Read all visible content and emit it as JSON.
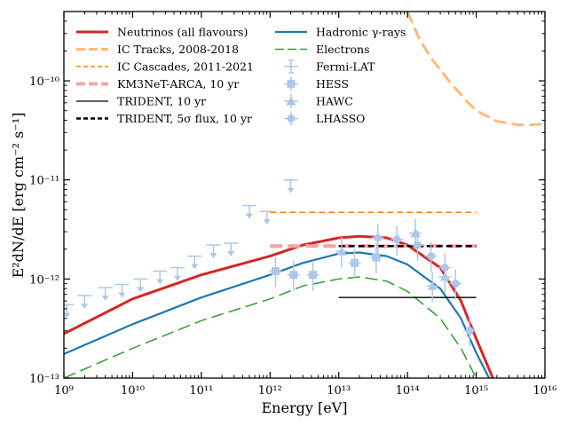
{
  "chart_data": {
    "type": "line",
    "xlabel": "Energy [eV]",
    "ylabel": "E²dN/dE [erg cm⁻² s⁻¹]",
    "xscale": "log",
    "yscale": "log",
    "xlim": [
      1000000000.0,
      1e+16
    ],
    "ylim": [
      1e-13,
      5e-10
    ],
    "x_major_ticks": [
      1000000000.0,
      10000000000.0,
      100000000000.0,
      1000000000000.0,
      10000000000000.0,
      100000000000000.0,
      1000000000000000.0,
      1e+16
    ],
    "x_tick_labels": [
      "10⁹",
      "10¹⁰",
      "10¹¹",
      "10¹²",
      "10¹³",
      "10¹⁴",
      "10¹⁵",
      "10¹⁶"
    ],
    "y_major_ticks": [
      1e-13,
      1e-12,
      1e-11,
      1e-10
    ],
    "y_tick_labels": [
      "10⁻¹³",
      "10⁻¹²",
      "10⁻¹¹",
      "10⁻¹⁰"
    ],
    "legend_location": "top-left",
    "series": [
      {
        "name": "Neutrinos (all flavours)",
        "color": "#d62728",
        "style": "solid",
        "width": 3,
        "x": [
          1000000000.0,
          10000000000.0,
          100000000000.0,
          1000000000000.0,
          3000000000000.0,
          10000000000000.0,
          20000000000000.0,
          50000000000000.0,
          100000000000000.0,
          300000000000000.0,
          600000000000000.0,
          1000000000000000.0,
          2000000000000000.0
        ],
        "y": [
          2.8e-13,
          6.3e-13,
          1.1e-12,
          1.7e-12,
          2.2e-12,
          2.6e-12,
          2.7e-12,
          2.6e-12,
          2.2e-12,
          1.3e-12,
          6e-13,
          2.5e-13,
          8e-14
        ]
      },
      {
        "name": "Hadronic γ-rays",
        "color": "#1f77b4",
        "style": "solid",
        "width": 2.2,
        "x": [
          1000000000.0,
          10000000000.0,
          100000000000.0,
          1000000000000.0,
          3000000000000.0,
          10000000000000.0,
          20000000000000.0,
          50000000000000.0,
          100000000000000.0,
          300000000000000.0,
          600000000000000.0,
          1000000000000000.0,
          2000000000000000.0
        ],
        "y": [
          1.75e-13,
          3.5e-13,
          6.5e-13,
          1.1e-12,
          1.45e-12,
          1.8e-12,
          1.85e-12,
          1.7e-12,
          1.4e-12,
          8e-13,
          4e-13,
          1.8e-13,
          7e-14
        ]
      },
      {
        "name": "Electrons",
        "color": "#2ca02c",
        "style": "longdash",
        "width": 1.5,
        "x": [
          1000000000.0,
          10000000000.0,
          100000000000.0,
          1000000000000.0,
          3000000000000.0,
          10000000000000.0,
          20000000000000.0,
          50000000000000.0,
          100000000000000.0,
          300000000000000.0,
          600000000000000.0,
          1000000000000000.0
        ],
        "y": [
          1e-13,
          2e-13,
          3.8e-13,
          6.3e-13,
          8.5e-13,
          1e-12,
          1.05e-12,
          9.5e-13,
          7.5e-13,
          4e-13,
          2e-13,
          1e-13
        ]
      },
      {
        "name": "IC Tracks, 2008-2018",
        "color": "#ffbb78",
        "style": "longdash",
        "width": 3,
        "x": [
          100000000000000.0,
          150000000000000.0,
          220000000000000.0,
          400000000000000.0,
          700000000000000.0,
          1000000000000000.0,
          2000000000000000.0,
          4000000000000000.0,
          6000000000000000.0,
          1e+16
        ],
        "y": [
          5e-10,
          2.6e-10,
          1.7e-10,
          1e-10,
          6.4e-11,
          5e-11,
          3.9e-11,
          3.6e-11,
          3.6e-11,
          3.65e-11
        ]
      },
      {
        "name": "IC Cascades, 2011-2021",
        "color": "#ff7f0e",
        "style": "dashed",
        "width": 1.5,
        "x": [
          1000000000000.0,
          1000000000000000.0
        ],
        "y": [
          4.7e-12,
          4.7e-12
        ]
      },
      {
        "name": "KM3NeT-ARCA, 10 yr",
        "color": "#f4a4a4",
        "style": "longdash",
        "width": 4,
        "x": [
          1000000000000.0,
          1000000000000000.0
        ],
        "y": [
          2.15e-12,
          2.15e-12
        ]
      },
      {
        "name": "TRIDENT, 10 yr",
        "color": "#000000",
        "style": "solid",
        "width": 1.3,
        "x": [
          10000000000000.0,
          1000000000000000.0
        ],
        "y": [
          6.5e-13,
          6.5e-13
        ]
      },
      {
        "name": "TRIDENT, 5σ flux, 10 yr",
        "color": "#000000",
        "style": "dashed",
        "width": 2.5,
        "x": [
          10000000000000.0,
          1000000000000000.0
        ],
        "y": [
          2.15e-12,
          2.15e-12
        ]
      }
    ],
    "data_points": [
      {
        "name": "Fermi-LAT",
        "marker": "upper-limit",
        "color": "#aec7e8",
        "x": [
          1100000000.0,
          2000000000.0,
          4000000000.0,
          7000000000.0,
          13000000000.0,
          25000000000.0,
          45000000000.0,
          80000000000.0,
          150000000000.0,
          270000000000.0,
          500000000000.0,
          900000000000.0,
          2000000000000.0
        ],
        "y": [
          5.5e-13,
          6.8e-13,
          8.2e-13,
          8.8e-13,
          1e-12,
          1.2e-12,
          1.3e-12,
          1.7e-12,
          2.2e-12,
          2.3e-12,
          5.5e-12,
          4.8e-12,
          1e-11
        ]
      },
      {
        "name": "HESS",
        "marker": "square",
        "color": "#aec7e8",
        "x": [
          1200000000000.0,
          2200000000000.0,
          4200000000000.0,
          17000000000000.0,
          35000000000000.0
        ],
        "y": [
          1.2e-12,
          1.1e-12,
          1.1e-12,
          1.45e-12,
          1.65e-12
        ]
      },
      {
        "name": "HAWC",
        "marker": "triangle",
        "color": "#aec7e8",
        "x": [
          11000000000000.0,
          130000000000000.0,
          230000000000000.0,
          350000000000000.0
        ],
        "y": [
          1.9e-12,
          2.9e-12,
          8.5e-13,
          1.05e-12
        ]
      },
      {
        "name": "LHASSO",
        "marker": "circle",
        "color": "#aec7e8",
        "x": [
          37000000000000.0,
          70000000000000.0,
          140000000000000.0,
          220000000000000.0,
          350000000000000.0,
          500000000000000.0,
          800000000000000.0
        ],
        "y": [
          2.6e-12,
          2.5e-12,
          2.2e-12,
          1.7e-12,
          1.3e-12,
          9e-13,
          3e-13
        ]
      }
    ]
  }
}
